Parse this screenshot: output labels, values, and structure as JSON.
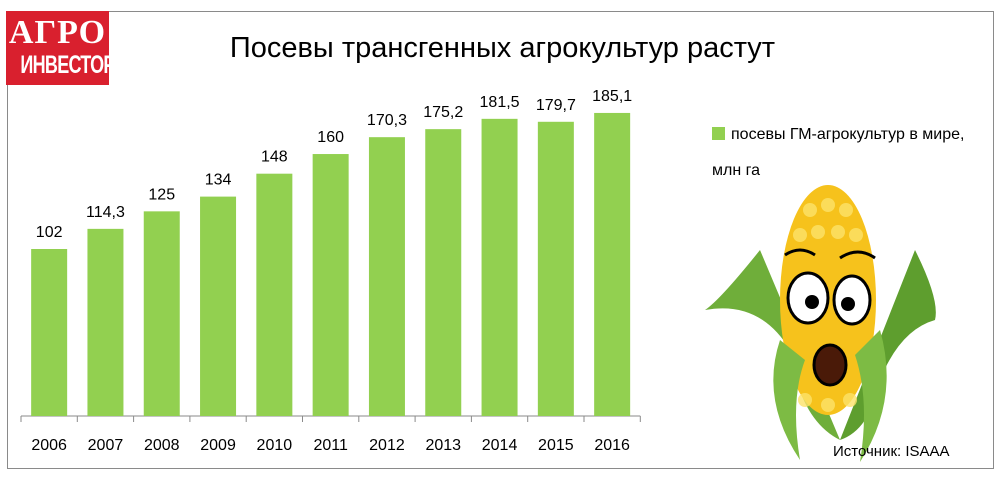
{
  "logo": {
    "line1": "АГРО",
    "line2": "ИНВЕСТОР",
    "color": "#d9202e"
  },
  "source": "Источник: ISAAA",
  "chart_data": {
    "type": "bar",
    "title": "Посевы трансгенных агрокультур растут",
    "categories": [
      "2006",
      "2007",
      "2008",
      "2009",
      "2010",
      "2011",
      "2012",
      "2013",
      "2014",
      "2015",
      "2016"
    ],
    "series": [
      {
        "name": "посевы ГМ-агрокультур в мире, млн га",
        "values": [
          102,
          114.3,
          125,
          134,
          148,
          160,
          170.3,
          175.2,
          181.5,
          179.7,
          185.1
        ],
        "labels": [
          "102",
          "114,3",
          "125",
          "134",
          "148",
          "160",
          "170,3",
          "175,2",
          "181,5",
          "179,7",
          "185,1"
        ],
        "color": "#92d050"
      }
    ],
    "ylim": [
      0,
      200
    ],
    "grid": false,
    "legend": "right"
  }
}
